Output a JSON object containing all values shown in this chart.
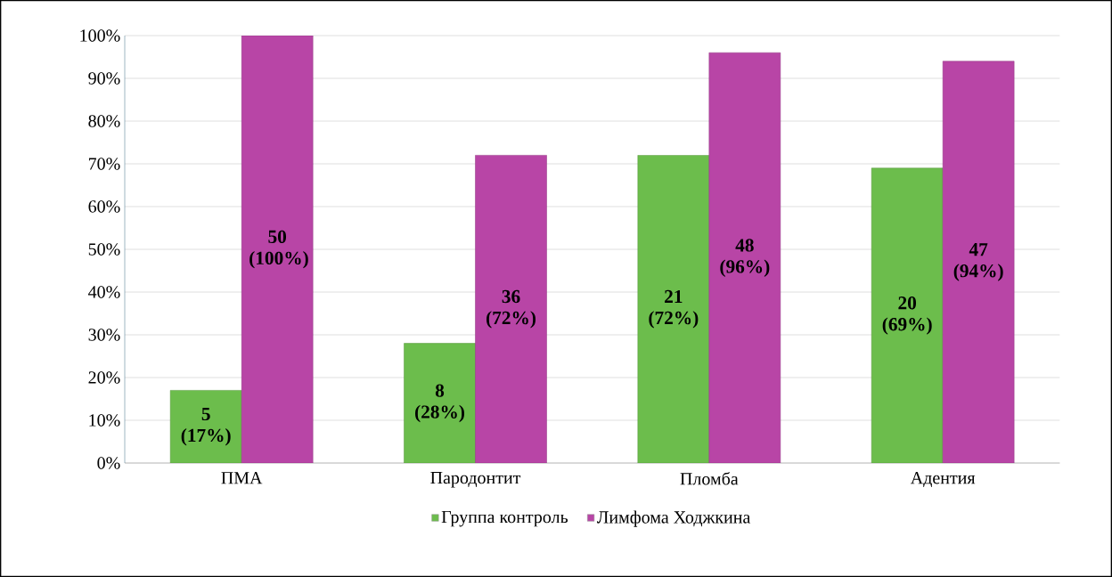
{
  "chart_data": {
    "type": "bar",
    "categories": [
      "ПМА",
      "Пародонтит",
      "Пломба",
      "Адентия"
    ],
    "series": [
      {
        "name": "Группа контроль",
        "color": "#6cbd4c",
        "values": [
          17,
          28,
          72,
          69
        ],
        "value_labels": [
          "5 (17%)",
          "8 (28%)",
          "21 (72%)",
          "20 (69%)"
        ]
      },
      {
        "name": "Лимфома Ходжкина",
        "color": "#b845a6",
        "values": [
          100,
          72,
          96,
          94
        ],
        "value_labels": [
          "50 (100%)",
          "36 (72%)",
          "48 (96%)",
          "47 (94%)"
        ]
      }
    ],
    "ylim": [
      0,
      100
    ],
    "yticks": [
      {
        "value": 0,
        "label": "0%"
      },
      {
        "value": 10,
        "label": "10%"
      },
      {
        "value": 20,
        "label": "20%"
      },
      {
        "value": 30,
        "label": "30%"
      },
      {
        "value": 40,
        "label": "40%"
      },
      {
        "value": 50,
        "label": "50%"
      },
      {
        "value": 60,
        "label": "60%"
      },
      {
        "value": 70,
        "label": "70%"
      },
      {
        "value": 80,
        "label": "80%"
      },
      {
        "value": 90,
        "label": "90%"
      },
      {
        "value": 100,
        "label": "100%"
      }
    ],
    "grid": "y",
    "legend": "bottom"
  }
}
